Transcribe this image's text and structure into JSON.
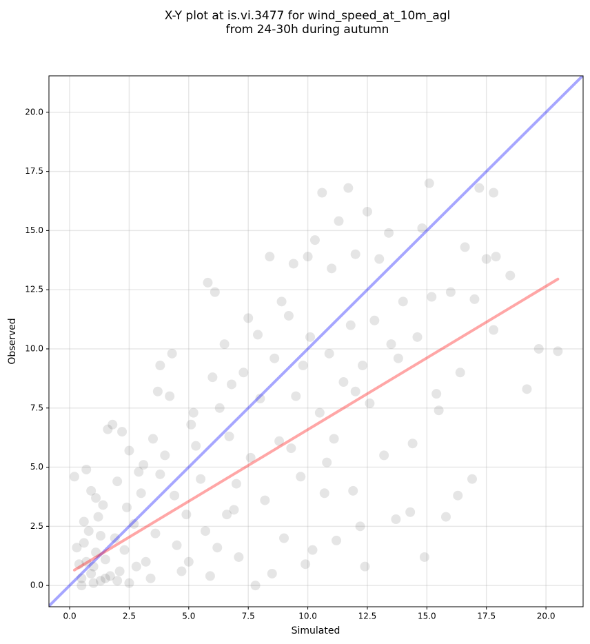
{
  "chart_data": {
    "type": "scatter",
    "title": [
      "X-Y plot at is.vi.3477 for wind_speed_at_10m_agl",
      "from 24-30h during autumn"
    ],
    "x_label": "Simulated",
    "y_label": "Observed",
    "xlim": [
      -0.87,
      21.56
    ],
    "ylim": [
      -0.9,
      21.54
    ],
    "xticks": [
      {
        "value": 0,
        "label": "0.0"
      },
      2.5,
      {
        "value": 5,
        "label": "5.0"
      },
      7.5,
      {
        "value": 10,
        "label": "10.0"
      },
      12.5,
      {
        "value": 15,
        "label": "15.0"
      },
      17.5,
      {
        "value": 20,
        "label": "20.0"
      }
    ],
    "yticks": [
      {
        "value": 0,
        "label": "0.0"
      },
      2.5,
      {
        "value": 5,
        "label": "5.0"
      },
      7.5,
      {
        "value": 10,
        "label": "10.0"
      },
      12.5,
      {
        "value": 15,
        "label": "15.0"
      },
      17.5,
      {
        "value": 20,
        "label": "20.0"
      }
    ],
    "grid": true,
    "color": "#000000",
    "x": [
      0.5,
      0.7,
      0.9,
      1.1,
      1.3,
      0.6,
      0.8,
      1.0,
      1.2,
      1.5,
      1.7,
      0.4,
      0.3,
      1.9,
      2.1,
      2.3,
      2.5,
      2.7,
      1.4,
      0.9,
      0.7,
      0.2,
      1.6,
      1.8,
      2.2,
      2.5,
      2.0,
      3.0,
      3.2,
      3.4,
      3.6,
      3.8,
      4.0,
      4.2,
      4.3,
      3.8,
      3.7,
      4.5,
      4.7,
      4.9,
      5.1,
      5.3,
      5.5,
      5.7,
      5.9,
      6.0,
      6.1,
      5.8,
      6.3,
      6.5,
      6.7,
      6.9,
      7.1,
      7.3,
      7.5,
      7.6,
      7.8,
      8.0,
      8.2,
      8.4,
      8.6,
      8.8,
      9.0,
      9.2,
      9.4,
      9.5,
      9.7,
      9.9,
      10.0,
      10.1,
      10.3,
      10.5,
      10.6,
      10.7,
      10.9,
      11.0,
      11.1,
      11.3,
      11.5,
      11.7,
      11.8,
      11.9,
      12.0,
      12.2,
      12.3,
      12.5,
      12.6,
      12.8,
      13.0,
      13.2,
      13.4,
      13.5,
      13.7,
      14.0,
      14.3,
      14.4,
      14.6,
      14.8,
      14.9,
      15.1,
      15.2,
      15.4,
      15.5,
      15.8,
      16.0,
      16.3,
      16.4,
      16.6,
      16.9,
      17.0,
      17.2,
      17.5,
      17.8,
      17.9,
      17.8,
      18.5,
      19.2,
      19.7,
      20.5,
      0.5,
      1.0,
      1.5,
      2.0,
      0.6,
      1.1,
      1.3,
      2.4,
      2.8,
      3.1,
      3.5,
      2.9,
      4.4,
      5.0,
      5.2,
      6.2,
      6.8,
      7.0,
      8.5,
      9.3,
      10.2,
      10.8,
      11.2,
      12.0,
      12.4,
      13.8,
      8.9,
      9.8,
      7.9,
      6.6
    ],
    "values": [
      0.3,
      1.0,
      0.5,
      1.4,
      0.2,
      1.8,
      2.3,
      0.8,
      2.9,
      1.1,
      0.4,
      0.9,
      1.6,
      2.0,
      0.6,
      1.5,
      0.1,
      2.6,
      3.4,
      4.0,
      4.9,
      4.6,
      6.6,
      6.8,
      6.5,
      5.7,
      4.4,
      3.9,
      1.0,
      0.3,
      2.2,
      4.7,
      5.5,
      8.0,
      9.8,
      9.3,
      8.2,
      1.7,
      0.6,
      3.0,
      6.8,
      5.9,
      4.5,
      2.3,
      0.4,
      8.8,
      12.4,
      12.8,
      7.5,
      10.2,
      6.3,
      3.2,
      1.2,
      9.0,
      11.3,
      5.4,
      0.0,
      7.9,
      3.6,
      13.9,
      9.6,
      6.1,
      2.0,
      11.4,
      13.6,
      8.0,
      4.6,
      0.9,
      13.9,
      10.5,
      14.6,
      7.3,
      16.6,
      3.9,
      9.8,
      13.4,
      6.2,
      15.4,
      8.6,
      16.8,
      11.0,
      4.0,
      14.0,
      2.5,
      9.3,
      15.8,
      7.7,
      11.2,
      13.8,
      5.5,
      14.9,
      10.2,
      2.8,
      12.0,
      3.1,
      6.0,
      10.5,
      15.1,
      1.2,
      17.0,
      12.2,
      8.1,
      7.4,
      2.9,
      12.4,
      3.8,
      9.0,
      14.3,
      4.5,
      12.1,
      16.8,
      13.8,
      16.6,
      13.9,
      10.8,
      13.1,
      8.3,
      10.0,
      9.9,
      0.0,
      0.1,
      0.3,
      0.2,
      2.7,
      3.7,
      2.1,
      3.3,
      0.8,
      5.1,
      6.2,
      4.8,
      3.8,
      1.0,
      7.3,
      1.6,
      8.5,
      4.3,
      0.5,
      5.8,
      1.5,
      5.2,
      1.9,
      8.2,
      0.8,
      9.6,
      12.0,
      9.3,
      10.6,
      3.0
    ],
    "lines": [
      {
        "color": "#0000ff",
        "x": [
          -0.87,
          21.56
        ],
        "values": [
          -0.87,
          21.56
        ]
      },
      {
        "color": "#ff0000",
        "x": [
          0.2,
          20.5
        ],
        "values": [
          0.65,
          12.95
        ]
      }
    ]
  }
}
